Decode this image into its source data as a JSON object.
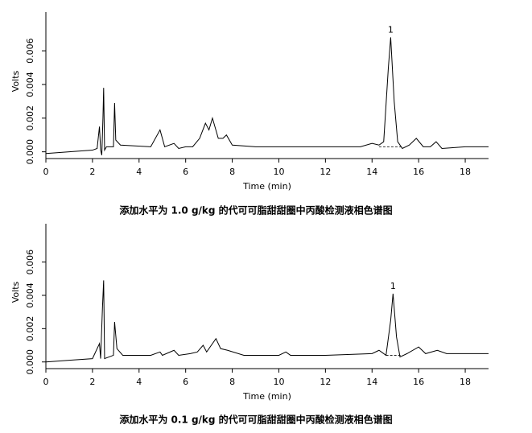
{
  "chart_data": [
    {
      "type": "line",
      "title": "添加水平为 1.0 g/kg 的代可可脂甜甜圈中丙酸检测液相色谱图",
      "x_label": "Time (min)",
      "y_label": "Volts",
      "color": "#000000",
      "x": [
        0,
        1,
        2,
        2.2,
        2.3,
        2.35,
        2.4,
        2.45,
        2.48,
        2.52,
        2.6,
        2.9,
        2.95,
        3.0,
        3.2,
        4.5,
        4.9,
        5.1,
        5.5,
        5.7,
        6.0,
        6.3,
        6.6,
        6.85,
        7.0,
        7.15,
        7.4,
        7.6,
        7.75,
        8.0,
        9.0,
        10,
        12,
        13.5,
        14,
        14.3,
        14.5,
        14.7,
        14.8,
        14.95,
        15.1,
        15.3,
        15.6,
        15.9,
        16.2,
        16.5,
        16.75,
        17.0,
        18,
        19
      ],
      "values": [
        -0.0001,
        0,
        0.0001,
        0.0002,
        0.0015,
        0.0001,
        -0.0002,
        0.002,
        0.0038,
        0.0001,
        0.0003,
        0.0003,
        0.0029,
        0.0007,
        0.0004,
        0.0003,
        0.0013,
        0.0003,
        0.0005,
        0.0002,
        0.0003,
        0.0003,
        0.0008,
        0.0017,
        0.0013,
        0.002,
        0.0008,
        0.0008,
        0.001,
        0.0004,
        0.0003,
        0.0003,
        0.0003,
        0.0003,
        0.0005,
        0.0004,
        0.0006,
        0.005,
        0.0068,
        0.003,
        0.0006,
        0.0002,
        0.0004,
        0.0008,
        0.0003,
        0.0003,
        0.0006,
        0.0002,
        0.0003,
        0.0003
      ],
      "baseline": {
        "x": [
          14.3,
          15.3
        ],
        "values": [
          0.0003,
          0.0003
        ]
      },
      "annotations": [
        {
          "text": "1",
          "x": 14.8,
          "y": 0.0068
        }
      ],
      "xlim": [
        0,
        19
      ],
      "xticks": [
        0,
        2,
        4,
        6,
        8,
        10,
        12,
        14,
        16,
        18
      ],
      "ylim": [
        -0.0004,
        0.0083
      ],
      "yticks": [
        {
          "value": 0,
          "label": "0.000"
        },
        {
          "value": 0.002,
          "label": "0.002"
        },
        {
          "value": 0.004,
          "label": "0.004"
        },
        {
          "value": 0.006,
          "label": "0.006"
        }
      ]
    },
    {
      "type": "line",
      "title": "添加水平为 0.1 g/kg 的代可可脂甜甜圈中丙酸检测液相色谱图",
      "x_label": "Time (min)",
      "y_label": "Volts",
      "color": "#000000",
      "x": [
        0,
        1,
        2,
        2.3,
        2.35,
        2.43,
        2.48,
        2.52,
        2.9,
        2.95,
        3.05,
        3.3,
        4.5,
        4.9,
        5.0,
        5.5,
        5.7,
        6.2,
        6.5,
        6.75,
        6.9,
        7.3,
        7.5,
        7.8,
        8.5,
        10,
        10.3,
        10.5,
        12,
        14,
        14.3,
        14.6,
        14.8,
        14.9,
        15.05,
        15.2,
        15.5,
        16.0,
        16.3,
        16.8,
        17.2,
        19
      ],
      "values": [
        0,
        0.0001,
        0.0002,
        0.0011,
        0.0002,
        0.0033,
        0.0049,
        0.0002,
        0.0004,
        0.0024,
        0.0008,
        0.0004,
        0.0004,
        0.0006,
        0.0004,
        0.0007,
        0.0004,
        0.0005,
        0.0006,
        0.001,
        0.0006,
        0.0014,
        0.0008,
        0.0007,
        0.0004,
        0.0004,
        0.0006,
        0.0004,
        0.0004,
        0.0005,
        0.0007,
        0.0004,
        0.0025,
        0.0041,
        0.0015,
        0.0003,
        0.0005,
        0.0009,
        0.0005,
        0.0007,
        0.0005,
        0.0005
      ],
      "baseline": {
        "x": [
          14.6,
          15.3
        ],
        "values": [
          0.0004,
          0.0004
        ]
      },
      "annotations": [
        {
          "text": "1",
          "x": 14.9,
          "y": 0.0041
        }
      ],
      "xlim": [
        0,
        19
      ],
      "xticks": [
        0,
        2,
        4,
        6,
        8,
        10,
        12,
        14,
        16,
        18
      ],
      "ylim": [
        -0.0004,
        0.0083
      ],
      "yticks": [
        {
          "value": 0,
          "label": "0.000"
        },
        {
          "value": 0.002,
          "label": "0.002"
        },
        {
          "value": 0.004,
          "label": "0.004"
        },
        {
          "value": 0.006,
          "label": "0.006"
        }
      ]
    }
  ]
}
